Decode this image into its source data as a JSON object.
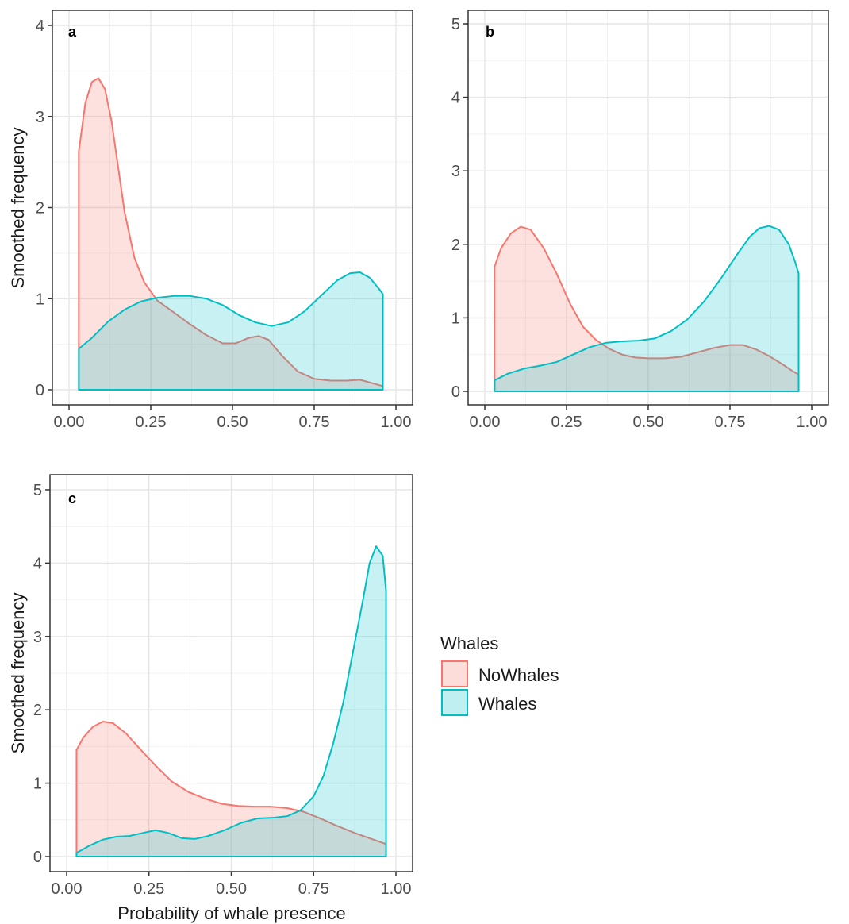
{
  "chart_data": [
    {
      "panel": "a",
      "type": "area",
      "xlabel": "",
      "ylabel": "Smoothed frequency",
      "xlim": [
        0,
        1
      ],
      "ylim": [
        0,
        4
      ],
      "x_ticks": [
        "0.00",
        "0.25",
        "0.50",
        "0.75",
        "1.00"
      ],
      "y_ticks": [
        "0",
        "1",
        "2",
        "3",
        "4"
      ],
      "grid": true,
      "series": [
        {
          "name": "NoWhales",
          "color": "#F8766D",
          "fill": "#F8766D",
          "points": [
            [
              0.03,
              2.62
            ],
            [
              0.05,
              3.15
            ],
            [
              0.07,
              3.38
            ],
            [
              0.09,
              3.42
            ],
            [
              0.11,
              3.3
            ],
            [
              0.13,
              2.95
            ],
            [
              0.15,
              2.45
            ],
            [
              0.17,
              1.95
            ],
            [
              0.2,
              1.45
            ],
            [
              0.23,
              1.18
            ],
            [
              0.27,
              0.98
            ],
            [
              0.32,
              0.85
            ],
            [
              0.37,
              0.72
            ],
            [
              0.42,
              0.6
            ],
            [
              0.47,
              0.51
            ],
            [
              0.51,
              0.51
            ],
            [
              0.55,
              0.57
            ],
            [
              0.58,
              0.59
            ],
            [
              0.61,
              0.55
            ],
            [
              0.65,
              0.38
            ],
            [
              0.7,
              0.2
            ],
            [
              0.75,
              0.12
            ],
            [
              0.8,
              0.1
            ],
            [
              0.85,
              0.1
            ],
            [
              0.89,
              0.11
            ],
            [
              0.93,
              0.07
            ],
            [
              0.96,
              0.04
            ]
          ]
        },
        {
          "name": "Whales",
          "color": "#00BFC4",
          "fill": "#00BFC4",
          "points": [
            [
              0.03,
              0.45
            ],
            [
              0.07,
              0.57
            ],
            [
              0.12,
              0.75
            ],
            [
              0.17,
              0.88
            ],
            [
              0.22,
              0.97
            ],
            [
              0.27,
              1.01
            ],
            [
              0.32,
              1.03
            ],
            [
              0.37,
              1.03
            ],
            [
              0.42,
              1.0
            ],
            [
              0.47,
              0.93
            ],
            [
              0.52,
              0.82
            ],
            [
              0.57,
              0.74
            ],
            [
              0.62,
              0.7
            ],
            [
              0.67,
              0.74
            ],
            [
              0.72,
              0.86
            ],
            [
              0.77,
              1.03
            ],
            [
              0.82,
              1.2
            ],
            [
              0.86,
              1.28
            ],
            [
              0.89,
              1.29
            ],
            [
              0.92,
              1.23
            ],
            [
              0.95,
              1.1
            ],
            [
              0.96,
              1.05
            ]
          ]
        }
      ]
    },
    {
      "panel": "b",
      "type": "area",
      "xlabel": "",
      "ylabel": "",
      "xlim": [
        0,
        1
      ],
      "ylim": [
        0,
        5
      ],
      "x_ticks": [
        "0.00",
        "0.25",
        "0.50",
        "0.75",
        "1.00"
      ],
      "y_ticks": [
        "0",
        "1",
        "2",
        "3",
        "4",
        "5"
      ],
      "grid": true,
      "series": [
        {
          "name": "NoWhales",
          "color": "#F8766D",
          "fill": "#F8766D",
          "points": [
            [
              0.03,
              1.7
            ],
            [
              0.05,
              1.95
            ],
            [
              0.08,
              2.15
            ],
            [
              0.11,
              2.24
            ],
            [
              0.14,
              2.2
            ],
            [
              0.18,
              1.95
            ],
            [
              0.22,
              1.6
            ],
            [
              0.26,
              1.2
            ],
            [
              0.3,
              0.88
            ],
            [
              0.34,
              0.7
            ],
            [
              0.38,
              0.58
            ],
            [
              0.42,
              0.5
            ],
            [
              0.46,
              0.46
            ],
            [
              0.5,
              0.45
            ],
            [
              0.55,
              0.45
            ],
            [
              0.6,
              0.47
            ],
            [
              0.65,
              0.53
            ],
            [
              0.7,
              0.59
            ],
            [
              0.75,
              0.63
            ],
            [
              0.79,
              0.63
            ],
            [
              0.83,
              0.57
            ],
            [
              0.87,
              0.48
            ],
            [
              0.91,
              0.37
            ],
            [
              0.94,
              0.28
            ],
            [
              0.96,
              0.23
            ]
          ]
        },
        {
          "name": "Whales",
          "color": "#00BFC4",
          "fill": "#00BFC4",
          "points": [
            [
              0.03,
              0.15
            ],
            [
              0.07,
              0.24
            ],
            [
              0.12,
              0.31
            ],
            [
              0.17,
              0.35
            ],
            [
              0.22,
              0.4
            ],
            [
              0.27,
              0.5
            ],
            [
              0.32,
              0.6
            ],
            [
              0.37,
              0.66
            ],
            [
              0.42,
              0.68
            ],
            [
              0.47,
              0.69
            ],
            [
              0.52,
              0.72
            ],
            [
              0.57,
              0.82
            ],
            [
              0.62,
              0.98
            ],
            [
              0.67,
              1.22
            ],
            [
              0.72,
              1.52
            ],
            [
              0.77,
              1.85
            ],
            [
              0.81,
              2.1
            ],
            [
              0.84,
              2.22
            ],
            [
              0.87,
              2.25
            ],
            [
              0.9,
              2.2
            ],
            [
              0.93,
              2.0
            ],
            [
              0.95,
              1.75
            ],
            [
              0.96,
              1.6
            ]
          ]
        }
      ]
    },
    {
      "panel": "c",
      "type": "area",
      "xlabel": "Probability of whale presence",
      "ylabel": "Smoothed frequency",
      "xlim": [
        0,
        1
      ],
      "ylim": [
        0,
        5
      ],
      "x_ticks": [
        "0.00",
        "0.25",
        "0.50",
        "0.75",
        "1.00"
      ],
      "y_ticks": [
        "0",
        "1",
        "2",
        "3",
        "4",
        "5"
      ],
      "grid": true,
      "series": [
        {
          "name": "NoWhales",
          "color": "#F8766D",
          "fill": "#F8766D",
          "points": [
            [
              0.03,
              1.45
            ],
            [
              0.05,
              1.62
            ],
            [
              0.08,
              1.77
            ],
            [
              0.11,
              1.84
            ],
            [
              0.14,
              1.82
            ],
            [
              0.18,
              1.68
            ],
            [
              0.22,
              1.48
            ],
            [
              0.27,
              1.24
            ],
            [
              0.32,
              1.02
            ],
            [
              0.37,
              0.88
            ],
            [
              0.42,
              0.79
            ],
            [
              0.47,
              0.72
            ],
            [
              0.52,
              0.69
            ],
            [
              0.57,
              0.68
            ],
            [
              0.62,
              0.68
            ],
            [
              0.67,
              0.66
            ],
            [
              0.72,
              0.61
            ],
            [
              0.77,
              0.52
            ],
            [
              0.82,
              0.42
            ],
            [
              0.87,
              0.33
            ],
            [
              0.92,
              0.25
            ],
            [
              0.97,
              0.17
            ]
          ]
        },
        {
          "name": "Whales",
          "color": "#00BFC4",
          "fill": "#00BFC4",
          "points": [
            [
              0.03,
              0.05
            ],
            [
              0.07,
              0.15
            ],
            [
              0.11,
              0.23
            ],
            [
              0.15,
              0.27
            ],
            [
              0.19,
              0.28
            ],
            [
              0.23,
              0.32
            ],
            [
              0.27,
              0.36
            ],
            [
              0.31,
              0.32
            ],
            [
              0.35,
              0.25
            ],
            [
              0.39,
              0.24
            ],
            [
              0.43,
              0.28
            ],
            [
              0.48,
              0.36
            ],
            [
              0.53,
              0.46
            ],
            [
              0.58,
              0.52
            ],
            [
              0.63,
              0.53
            ],
            [
              0.67,
              0.55
            ],
            [
              0.71,
              0.63
            ],
            [
              0.75,
              0.82
            ],
            [
              0.78,
              1.1
            ],
            [
              0.81,
              1.55
            ],
            [
              0.84,
              2.1
            ],
            [
              0.87,
              2.8
            ],
            [
              0.9,
              3.5
            ],
            [
              0.92,
              4.0
            ],
            [
              0.94,
              4.23
            ],
            [
              0.96,
              4.1
            ],
            [
              0.97,
              3.62
            ]
          ]
        }
      ]
    }
  ],
  "legend": {
    "title": "Whales",
    "items": [
      {
        "label": "NoWhales",
        "color": "#F8766D"
      },
      {
        "label": "Whales",
        "color": "#00BFC4"
      }
    ]
  }
}
